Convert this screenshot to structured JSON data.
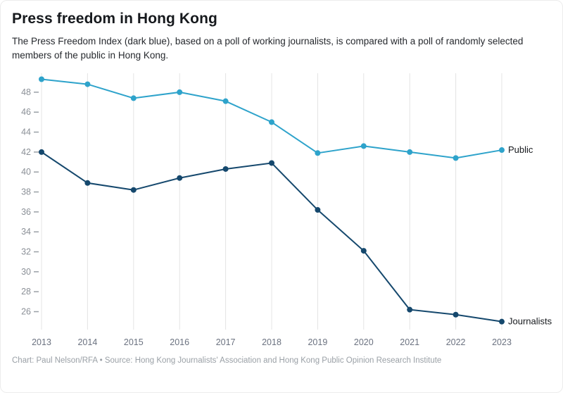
{
  "header": {
    "title": "Press freedom in Hong Kong",
    "subtitle": "The Press Freedom Index (dark blue), based on a poll of working journalists, is compared with a poll of randomly selected members of the public in Hong Kong."
  },
  "footer": {
    "credit": "Chart: Paul Nelson/RFA • Source: Hong Kong Journalists' Association and Hong Kong Public Opinion Research Institute"
  },
  "chart_data": {
    "type": "line",
    "title": "Press freedom in Hong Kong",
    "x": [
      2013,
      2014,
      2015,
      2016,
      2017,
      2018,
      2019,
      2020,
      2021,
      2022,
      2023
    ],
    "series": [
      {
        "name": "Public",
        "color": "#2ea3cb",
        "values": [
          49.3,
          48.8,
          47.4,
          48.0,
          47.1,
          45.0,
          41.9,
          42.6,
          42.0,
          41.4,
          42.2
        ]
      },
      {
        "name": "Journalists",
        "color": "#15486d",
        "values": [
          42.0,
          38.9,
          38.2,
          39.4,
          40.3,
          40.9,
          36.2,
          32.1,
          26.2,
          25.7,
          25.0
        ]
      }
    ],
    "yticks": [
      26,
      28,
      30,
      32,
      34,
      36,
      38,
      40,
      42,
      44,
      46,
      48
    ],
    "ylim": [
      24.2,
      49.9
    ],
    "grid": "vertical-only",
    "legend_position": "right-end-labels",
    "grid_color": "#e4e4e4",
    "tick_label_color": "#6b7280",
    "series_label_color": "#16191d"
  }
}
